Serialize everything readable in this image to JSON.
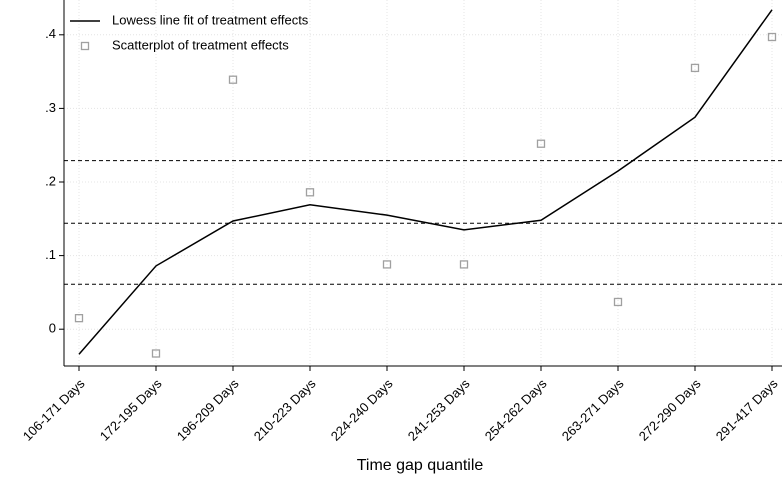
{
  "chart_data": {
    "type": "line_scatter",
    "x_label": "Time gap quantile",
    "categories": [
      "106-171 Days",
      "172-195 Days",
      "196-209 Days",
      "210-223 Days",
      "224-240 Days",
      "241-253 Days",
      "254-262 Days",
      "263-271 Days",
      "272-290 Days",
      "291-417 Days"
    ],
    "series": [
      {
        "name": "Lowess line fit of treatment effects",
        "kind": "line",
        "color": "#000000",
        "values": [
          -0.034,
          0.086,
          0.147,
          0.169,
          0.155,
          0.135,
          0.148,
          0.215,
          0.288,
          0.434
        ]
      },
      {
        "name": "Scatterplot of treatment effects",
        "kind": "scatter",
        "color": "#a0a0a0",
        "values": [
          0.015,
          -0.033,
          0.339,
          0.186,
          0.088,
          0.088,
          0.252,
          0.037,
          0.355,
          0.397
        ]
      }
    ],
    "reference_lines": [
      0.229,
      0.144,
      0.061
    ],
    "ylim": [
      -0.05,
      0.45
    ],
    "yticks": [
      0,
      {
        "value": 0.1,
        "label": ".1"
      },
      {
        "value": 0.2,
        "label": ".2"
      },
      {
        "value": 0.3,
        "label": ".3"
      },
      {
        "value": 0.4,
        "label": ".4"
      }
    ],
    "grid": true,
    "legend": "top-left"
  }
}
